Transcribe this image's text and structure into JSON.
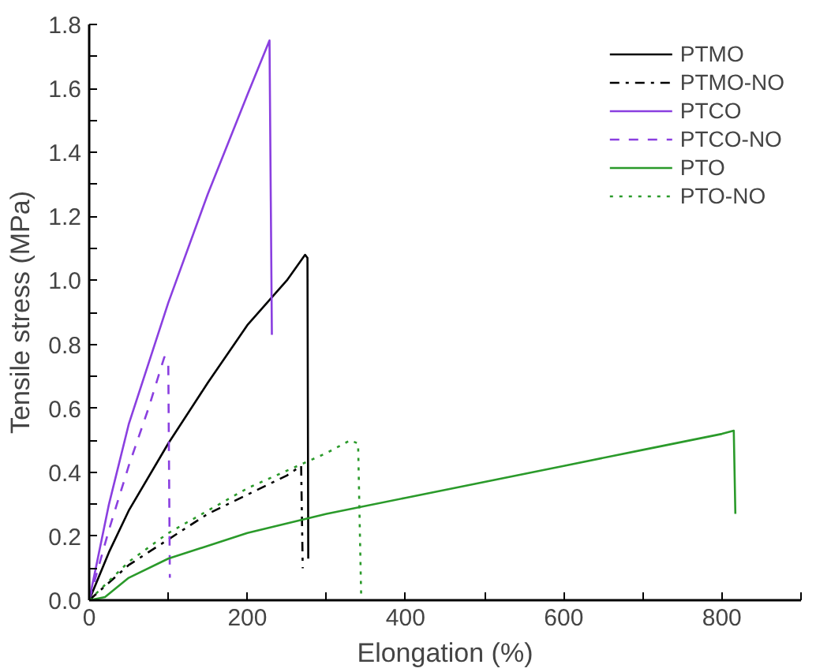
{
  "chart_data": {
    "type": "line",
    "xlabel": "Elongation (%)",
    "ylabel": "Tensile stress (MPa)",
    "xlim": [
      0,
      900
    ],
    "ylim": [
      0,
      1.8
    ],
    "xticks": [
      0,
      {
        "value": 100,
        "label": null
      },
      200,
      {
        "value": 300,
        "label": null
      },
      400,
      {
        "value": 500,
        "label": null
      },
      600,
      {
        "value": 700,
        "label": null
      },
      800,
      {
        "value": 900,
        "label": null
      }
    ],
    "yticks": [
      "0.0",
      {
        "value": 0.1,
        "label": null
      },
      0.2,
      {
        "value": 0.3,
        "label": null
      },
      0.4,
      {
        "value": 0.5,
        "label": null
      },
      0.6,
      {
        "value": 0.7,
        "label": null
      },
      0.8,
      {
        "value": 0.9,
        "label": null
      },
      {
        "value": 1.0,
        "label": "1.0"
      },
      {
        "value": 1.1,
        "label": null
      },
      1.2,
      {
        "value": 1.3,
        "label": null
      },
      1.4,
      {
        "value": 1.5,
        "label": null
      },
      1.6,
      {
        "value": 1.7,
        "label": null
      },
      1.8
    ],
    "grid": false,
    "legend": "top right",
    "marker": "none",
    "series": [
      {
        "name": "PTMO",
        "color": "#000000",
        "line_style": "solid",
        "x": [
          0,
          25,
          50,
          100,
          150,
          200,
          250,
          273,
          276,
          277
        ],
        "values": [
          0,
          0.15,
          0.28,
          0.49,
          0.68,
          0.86,
          1.0,
          1.08,
          1.07,
          0.13
        ]
      },
      {
        "name": "PTMO-NO",
        "color": "#000000",
        "line_style": "dashdot",
        "x": [
          0,
          50,
          100,
          150,
          200,
          250,
          268,
          270
        ],
        "values": [
          0,
          0.11,
          0.19,
          0.27,
          0.33,
          0.39,
          0.42,
          0.1
        ]
      },
      {
        "name": "PTCO",
        "color": "#8a3fe0",
        "line_style": "solid",
        "x": [
          0,
          25,
          50,
          100,
          150,
          200,
          228,
          231
        ],
        "values": [
          0,
          0.3,
          0.55,
          0.93,
          1.27,
          1.58,
          1.75,
          0.83
        ]
      },
      {
        "name": "PTCO-NO",
        "color": "#8a3fe0",
        "line_style": "dashed",
        "x": [
          0,
          25,
          50,
          75,
          95,
          100,
          102
        ],
        "values": [
          0,
          0.22,
          0.42,
          0.6,
          0.76,
          0.75,
          0.07
        ]
      },
      {
        "name": "PTO",
        "color": "#2a9a2a",
        "line_style": "solid",
        "x": [
          0,
          20,
          50,
          100,
          200,
          300,
          400,
          500,
          600,
          700,
          800,
          815,
          817
        ],
        "values": [
          0,
          0.01,
          0.07,
          0.13,
          0.21,
          0.27,
          0.32,
          0.37,
          0.42,
          0.47,
          0.52,
          0.53,
          0.27
        ]
      },
      {
        "name": "PTO-NO",
        "color": "#2a9a2a",
        "line_style": "dotted",
        "x": [
          0,
          50,
          100,
          200,
          300,
          330,
          340,
          344
        ],
        "values": [
          0,
          0.12,
          0.21,
          0.35,
          0.46,
          0.5,
          0.49,
          0.0
        ]
      }
    ]
  }
}
